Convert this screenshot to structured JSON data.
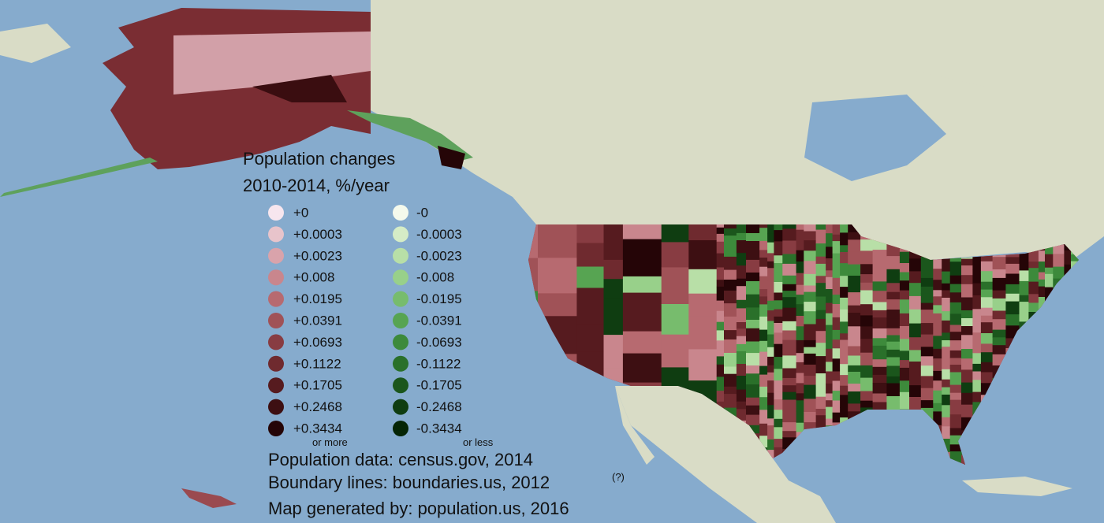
{
  "legend": {
    "title_line1": "Population changes",
    "title_line2": "2010-2014, %/year",
    "positive": [
      {
        "label": "+0",
        "color": "#f7e6ee"
      },
      {
        "label": "+0.0003",
        "color": "#e8c4cb"
      },
      {
        "label": "+0.0023",
        "color": "#d9a3ab"
      },
      {
        "label": "+0.008",
        "color": "#c9868d"
      },
      {
        "label": "+0.0195",
        "color": "#b76a70"
      },
      {
        "label": "+0.0391",
        "color": "#a05257"
      },
      {
        "label": "+0.0693",
        "color": "#883c42"
      },
      {
        "label": "+0.1122",
        "color": "#6f2a2f"
      },
      {
        "label": "+0.1705",
        "color": "#561b1f"
      },
      {
        "label": "+0.2468",
        "color": "#3d0f12"
      },
      {
        "label": "+0.3434",
        "color": "#250507"
      }
    ],
    "positive_note": "or more",
    "negative": [
      {
        "label": "-0",
        "color": "#f4f9ec"
      },
      {
        "label": "-0.0003",
        "color": "#d5ecc6"
      },
      {
        "label": "-0.0023",
        "color": "#b8dfa7"
      },
      {
        "label": "-0.008",
        "color": "#98d08a"
      },
      {
        "label": "-0.0195",
        "color": "#77bc6d"
      },
      {
        "label": "-0.0391",
        "color": "#57a452"
      },
      {
        "label": "-0.0693",
        "color": "#3d8a3b"
      },
      {
        "label": "-0.1122",
        "color": "#2a702a"
      },
      {
        "label": "-0.1705",
        "color": "#1b561c"
      },
      {
        "label": "-0.2468",
        "color": "#0f3d11"
      },
      {
        "label": "-0.3434",
        "color": "#052505"
      }
    ],
    "negative_note": "or less"
  },
  "credits": {
    "population": "Population data: census.gov, 2014",
    "boundaries": "Boundary lines: boundaries.us, 2012",
    "boundaries_help": "(?)",
    "generator": "Map generated by: population.us, 2016"
  }
}
